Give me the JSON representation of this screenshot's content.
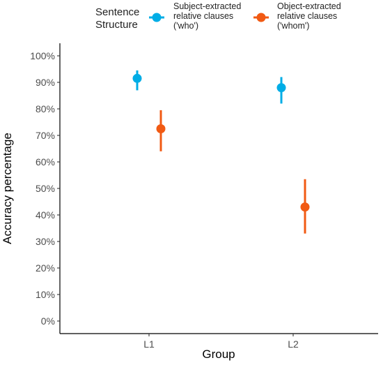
{
  "chart_data": {
    "type": "scatter",
    "xlabel": "Group",
    "ylabel": "Accuracy percentage",
    "categories": [
      "L1",
      "L2"
    ],
    "ylim": [
      0,
      100
    ],
    "yticks": [
      "0%",
      "10%",
      "20%",
      "30%",
      "40%",
      "50%",
      "60%",
      "70%",
      "80%",
      "90%",
      "100%"
    ],
    "grid": false,
    "legend": {
      "position": "top",
      "title_lines": [
        "Sentence",
        "Structure"
      ]
    },
    "series": [
      {
        "name_lines": [
          "Subject-extracted",
          "relative clauses",
          "('who')"
        ],
        "color": "#00ADE6",
        "values": [
          91.5,
          88
        ],
        "lower": [
          87,
          82
        ],
        "upper": [
          94.5,
          92
        ]
      },
      {
        "name_lines": [
          "Object-extracted",
          "relative clauses",
          "('whom')"
        ],
        "color": "#F15A13",
        "values": [
          72.5,
          43
        ],
        "lower": [
          64,
          33
        ],
        "upper": [
          79.5,
          53.5
        ]
      }
    ]
  }
}
